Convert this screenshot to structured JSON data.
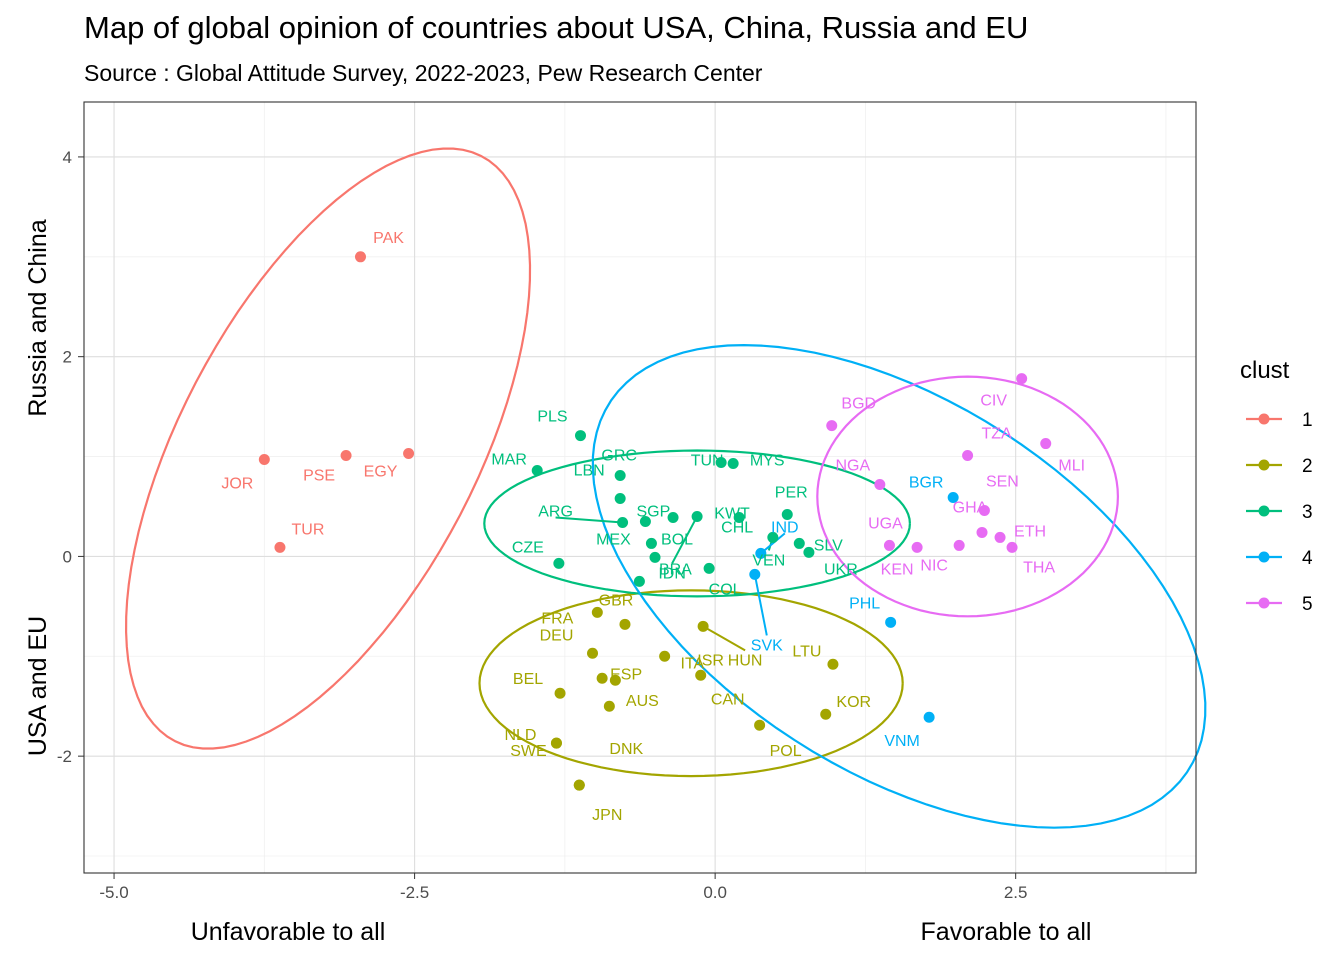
{
  "chart_data": {
    "type": "scatter",
    "title": "Map of global opinion of countries about USA, China, Russia and EU",
    "subtitle": "Source : Global Attitude Survey, 2022-2023, Pew Research Center",
    "xlabel_left": "Unfavorable to all",
    "xlabel_right": "Favorable to all",
    "ylabel_top": "Russia and China",
    "ylabel_bottom": "USA and EU",
    "xlim": [
      -5.25,
      4.0
    ],
    "ylim": [
      -3.17,
      4.55
    ],
    "x_ticks": [
      -5.0,
      -2.5,
      0.0,
      2.5
    ],
    "x_tick_labels": [
      "-5.0",
      "-2.5",
      "0.0",
      "2.5"
    ],
    "y_ticks": [
      -2,
      0,
      2,
      4
    ],
    "y_tick_labels": [
      "-2",
      "0",
      "2",
      "4"
    ],
    "grid": true,
    "legend": {
      "title": "clust",
      "position": "right",
      "entries": [
        {
          "label": "1",
          "color": "#F8766D"
        },
        {
          "label": "2",
          "color": "#A3A500"
        },
        {
          "label": "3",
          "color": "#00BF7D"
        },
        {
          "label": "4",
          "color": "#00B0F6"
        },
        {
          "label": "5",
          "color": "#E76BF3"
        }
      ]
    },
    "points": [
      {
        "label": "PAK",
        "x": -2.95,
        "y": 3.0,
        "cluster": 1
      },
      {
        "label": "JOR",
        "x": -3.75,
        "y": 0.97,
        "cluster": 1
      },
      {
        "label": "PSE",
        "x": -3.07,
        "y": 1.01,
        "cluster": 1
      },
      {
        "label": "EGY",
        "x": -2.55,
        "y": 1.03,
        "cluster": 1
      },
      {
        "label": "TUR",
        "x": -3.62,
        "y": 0.09,
        "cluster": 1
      },
      {
        "label": "FRA",
        "x": -0.98,
        "y": -0.56,
        "cluster": 2
      },
      {
        "label": "GBR",
        "x": -0.75,
        "y": -0.68,
        "cluster": 2
      },
      {
        "label": "ISR",
        "x": -0.42,
        "y": -1.0,
        "cluster": 2
      },
      {
        "label": "HUN",
        "x": -0.1,
        "y": -0.7,
        "cluster": 2
      },
      {
        "label": "DEU",
        "x": -1.02,
        "y": -0.97,
        "cluster": 2
      },
      {
        "label": "ESP",
        "x": -0.94,
        "y": -1.22,
        "cluster": 2
      },
      {
        "label": "ITA",
        "x": -0.83,
        "y": -1.24,
        "cluster": 2
      },
      {
        "label": "CAN",
        "x": -0.12,
        "y": -1.19,
        "cluster": 2
      },
      {
        "label": "LTU",
        "x": 0.98,
        "y": -1.08,
        "cluster": 2
      },
      {
        "label": "BEL",
        "x": -1.29,
        "y": -1.37,
        "cluster": 2
      },
      {
        "label": "AUS",
        "x": -0.88,
        "y": -1.5,
        "cluster": 2
      },
      {
        "label": "NLD",
        "x": -1.32,
        "y": -1.87,
        "cluster": 2
      },
      {
        "label": "DNK",
        "x": -1.13,
        "y": -2.29,
        "cluster": 2
      },
      {
        "label": "POL",
        "x": 0.37,
        "y": -1.69,
        "cluster": 2
      },
      {
        "label": "KOR",
        "x": 0.92,
        "y": -1.58,
        "cluster": 2
      },
      {
        "label": "SWE",
        "x": -1.32,
        "y": -1.87,
        "cluster": 2
      },
      {
        "label": "JPN",
        "x": -1.13,
        "y": -2.29,
        "cluster": 2
      },
      {
        "label": "PLS",
        "x": -1.12,
        "y": 1.21,
        "cluster": 3
      },
      {
        "label": "MAR",
        "x": -1.48,
        "y": 0.86,
        "cluster": 3
      },
      {
        "label": "GRC",
        "x": -0.79,
        "y": 0.81,
        "cluster": 3
      },
      {
        "label": "LBN",
        "x": -0.79,
        "y": 0.58,
        "cluster": 3
      },
      {
        "label": "TUN",
        "x": 0.05,
        "y": 0.94,
        "cluster": 3
      },
      {
        "label": "MYS",
        "x": 0.15,
        "y": 0.93,
        "cluster": 3
      },
      {
        "label": "IDN",
        "x": -0.15,
        "y": 0.4,
        "cluster": 3
      },
      {
        "label": "ARG",
        "x": -0.77,
        "y": 0.34,
        "cluster": 3
      },
      {
        "label": "SGP",
        "x": -0.58,
        "y": 0.35,
        "cluster": 3
      },
      {
        "label": "KWT",
        "x": -0.35,
        "y": 0.39,
        "cluster": 3
      },
      {
        "label": "PER",
        "x": 0.6,
        "y": 0.42,
        "cluster": 3
      },
      {
        "label": "MEX",
        "x": -0.53,
        "y": 0.13,
        "cluster": 3
      },
      {
        "label": "BOL",
        "x": -0.5,
        "y": -0.01,
        "cluster": 3
      },
      {
        "label": "CHL",
        "x": 0.2,
        "y": 0.39,
        "cluster": 3
      },
      {
        "label": "SLV",
        "x": 0.7,
        "y": 0.13,
        "cluster": 3
      },
      {
        "label": "VEN",
        "x": 0.48,
        "y": 0.19,
        "cluster": 3
      },
      {
        "label": "CZE",
        "x": -1.3,
        "y": -0.07,
        "cluster": 3
      },
      {
        "label": "BRA",
        "x": -0.63,
        "y": -0.25,
        "cluster": 3
      },
      {
        "label": "COL",
        "x": -0.05,
        "y": -0.12,
        "cluster": 3
      },
      {
        "label": "UKR",
        "x": 0.78,
        "y": 0.04,
        "cluster": 3
      },
      {
        "label": "IND",
        "x": 0.38,
        "y": 0.03,
        "cluster": 4
      },
      {
        "label": "SVK",
        "x": 0.33,
        "y": -0.18,
        "cluster": 4
      },
      {
        "label": "BGR",
        "x": 1.98,
        "y": 0.59,
        "cluster": 4
      },
      {
        "label": "PHL",
        "x": 1.46,
        "y": -0.66,
        "cluster": 4
      },
      {
        "label": "VNM",
        "x": 1.78,
        "y": -1.61,
        "cluster": 4
      },
      {
        "label": "BGD",
        "x": 0.97,
        "y": 1.31,
        "cluster": 5
      },
      {
        "label": "CIV",
        "x": 2.55,
        "y": 1.78,
        "cluster": 5
      },
      {
        "label": "TZA",
        "x": 2.1,
        "y": 1.01,
        "cluster": 5
      },
      {
        "label": "MLI",
        "x": 2.75,
        "y": 1.13,
        "cluster": 5
      },
      {
        "label": "NGA",
        "x": 1.37,
        "y": 0.72,
        "cluster": 5
      },
      {
        "label": "SEN",
        "x": 2.24,
        "y": 0.46,
        "cluster": 5
      },
      {
        "label": "GHA",
        "x": 2.22,
        "y": 0.24,
        "cluster": 5
      },
      {
        "label": "ETH",
        "x": 2.37,
        "y": 0.19,
        "cluster": 5
      },
      {
        "label": "UGA",
        "x": 1.45,
        "y": 0.11,
        "cluster": 5
      },
      {
        "label": "KEN",
        "x": 1.68,
        "y": 0.09,
        "cluster": 5
      },
      {
        "label": "NIC",
        "x": 2.03,
        "y": 0.11,
        "cluster": 5
      },
      {
        "label": "THA",
        "x": 2.47,
        "y": 0.09,
        "cluster": 5
      }
    ]
  }
}
